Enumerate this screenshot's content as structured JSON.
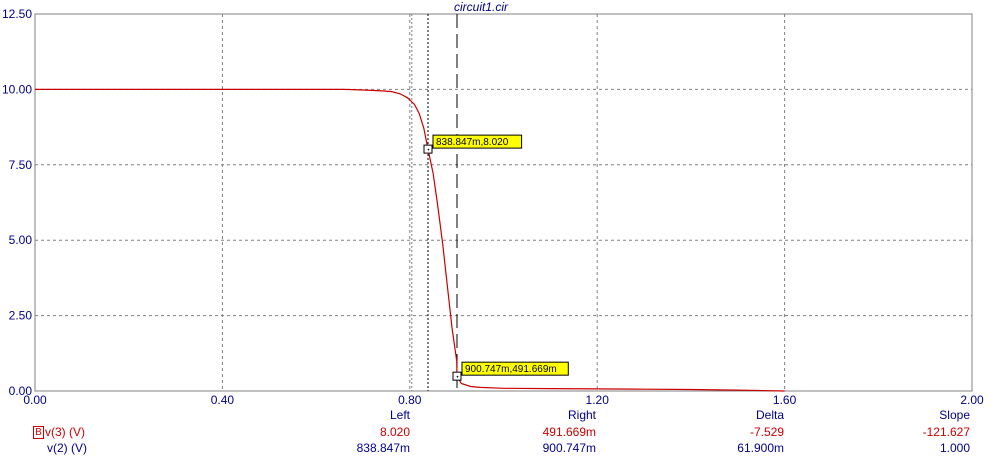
{
  "chart_data": {
    "type": "line",
    "title": "circuit1.cir",
    "x_ticks": [
      "0.00",
      "0.40",
      "0.80",
      "1.20",
      "1.60",
      "2.00"
    ],
    "y_ticks": [
      "12.50",
      "10.00",
      "7.50",
      "5.00",
      "2.50",
      "0.00"
    ],
    "xlim": [
      0,
      2.0
    ],
    "ylim": [
      0,
      12.5
    ],
    "grid": true,
    "series": [
      {
        "name": "v(3) (V)",
        "color": "#cc0000",
        "x": [
          0.0,
          0.4,
          0.66,
          0.7,
          0.74,
          0.76,
          0.78,
          0.795,
          0.81,
          0.82,
          0.83,
          0.838847,
          0.85,
          0.86,
          0.87,
          0.88,
          0.89,
          0.9,
          0.900747,
          0.91,
          0.93,
          0.95,
          1.0,
          1.1,
          1.2,
          1.3,
          1.4,
          1.5,
          1.6
        ],
        "y": [
          10.0,
          10.0,
          10.0,
          9.98,
          9.95,
          9.93,
          9.85,
          9.72,
          9.5,
          9.2,
          8.7,
          8.02,
          7.2,
          6.1,
          4.9,
          3.5,
          2.1,
          1.0,
          0.491669,
          0.25,
          0.15,
          0.12,
          0.09,
          0.08,
          0.07,
          0.06,
          0.05,
          0.03,
          0.0
        ]
      }
    ],
    "cursors": {
      "left": {
        "x": 0.838847,
        "y": 8.02,
        "label": "838.847m,8.020"
      },
      "right": {
        "x": 0.900747,
        "y": 0.491669,
        "label": "900.747m,491.669m"
      }
    },
    "extra_gridline_x": 0.8
  },
  "table": {
    "headers": {
      "left": "Left",
      "right": "Right",
      "delta": "Delta",
      "slope": "Slope"
    },
    "rows": [
      {
        "box": "B",
        "label": "v(3) (V)",
        "left": "8.020",
        "right": "491.669m",
        "delta": "-7.529",
        "slope": "-121.627",
        "color": "#cc0000"
      },
      {
        "box": "",
        "label": "v(2) (V)",
        "left": "838.847m",
        "right": "900.747m",
        "delta": "61.900m",
        "slope": "1.000",
        "color": "#00008b"
      }
    ]
  }
}
